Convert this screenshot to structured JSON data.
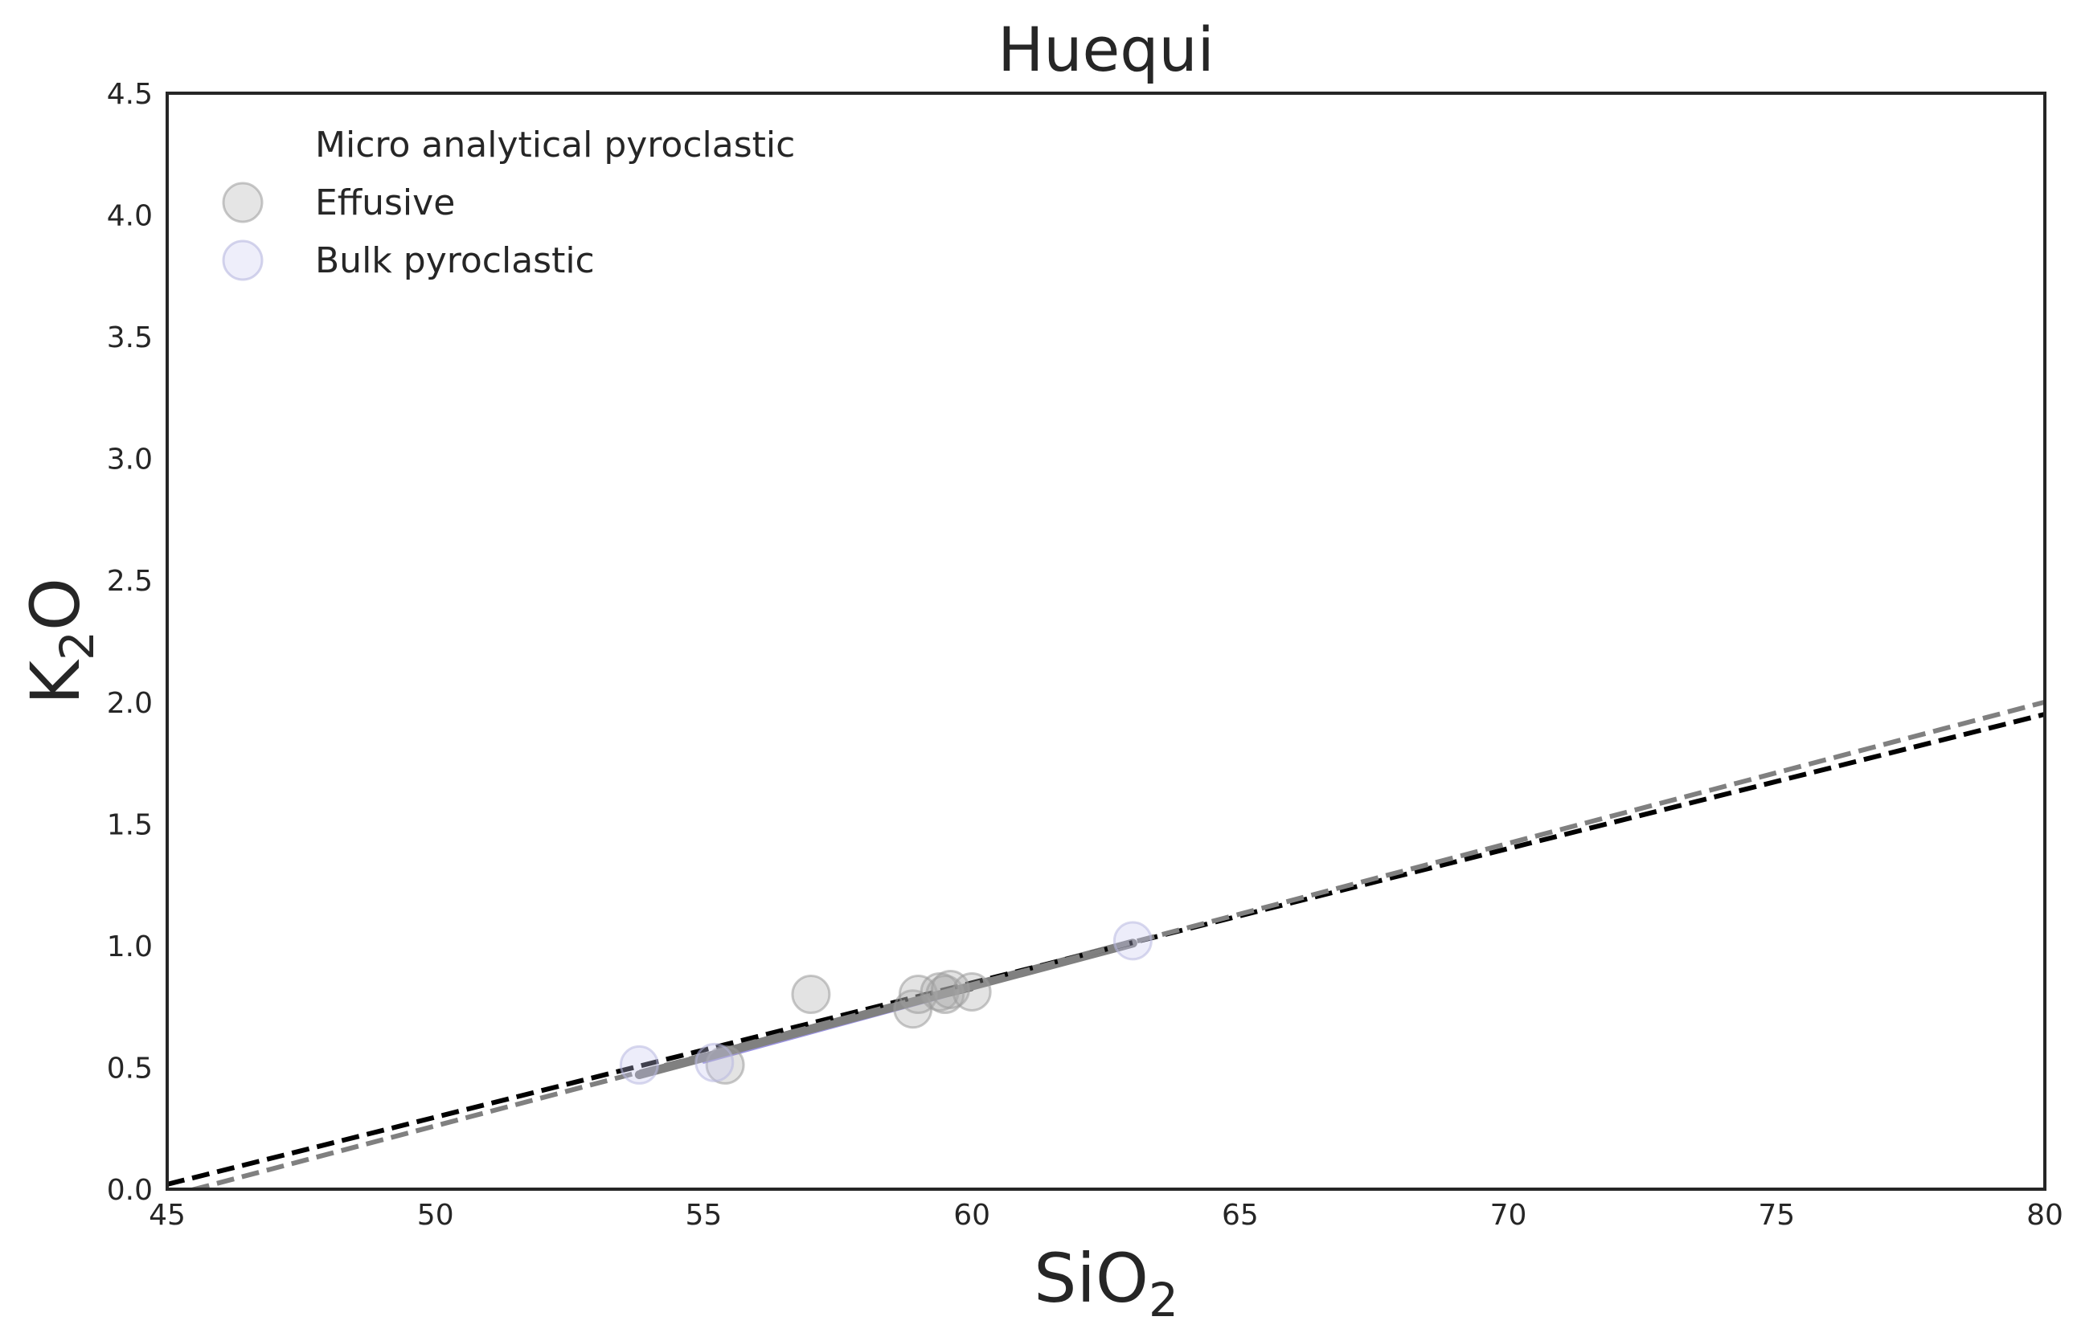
{
  "chart_data": {
    "type": "scatter",
    "title": "Huequi",
    "xlabel": {
      "base": "SiO",
      "sub": "2"
    },
    "ylabel": {
      "base": "K",
      "sub": "2",
      "suffix": "O"
    },
    "xlim": [
      45,
      80
    ],
    "ylim": [
      0,
      4.5
    ],
    "xticks": [
      45,
      50,
      55,
      60,
      65,
      70,
      75,
      80
    ],
    "xtick_labels": [
      "45",
      "50",
      "55",
      "60",
      "65",
      "70",
      "75",
      "80"
    ],
    "yticks": [
      0,
      0.5,
      1,
      1.5,
      2,
      2.5,
      3,
      3.5,
      4,
      4.5
    ],
    "ytick_labels": [
      "0.0",
      "0.5",
      "1.0",
      "1.5",
      "2.0",
      "2.5",
      "3.0",
      "3.5",
      "4.0",
      "4.5"
    ],
    "grid": false,
    "legend_position": "top-left",
    "series": [
      {
        "name": "Micro analytical pyroclastic",
        "kind": "scatter",
        "color": "#ffffff",
        "points": []
      },
      {
        "name": "Effusive",
        "kind": "scatter",
        "color": "#a9a9a9",
        "points": [
          [
            57.0,
            0.8
          ],
          [
            58.9,
            0.74
          ],
          [
            59.0,
            0.8
          ],
          [
            59.4,
            0.81
          ],
          [
            59.5,
            0.8
          ],
          [
            59.6,
            0.82
          ],
          [
            60.0,
            0.81
          ],
          [
            55.4,
            0.51
          ]
        ]
      },
      {
        "name": "Bulk pyroclastic",
        "kind": "scatter",
        "color": "#c8c8f0",
        "points": [
          [
            53.8,
            0.51
          ],
          [
            55.2,
            0.52
          ],
          [
            63.0,
            1.02
          ]
        ]
      }
    ],
    "lines": [
      {
        "style": "solid",
        "color": "#000000",
        "width": 4,
        "x": [
          53.8,
          60.0
        ],
        "y": [
          0.48,
          0.82
        ]
      },
      {
        "style": "solid",
        "color": "#9a92e0",
        "width": 3,
        "x": [
          55.0,
          59.5
        ],
        "y": [
          0.52,
          0.79
        ]
      },
      {
        "style": "solid",
        "color": "#808080",
        "width": 11,
        "x": [
          53.8,
          63.0
        ],
        "y": [
          0.47,
          1.01
        ]
      },
      {
        "style": "dashed",
        "color": "#000000",
        "width": 6,
        "x": [
          45,
          80
        ],
        "y": [
          0.02,
          1.95
        ]
      },
      {
        "style": "dashed",
        "color": "#808080",
        "width": 6,
        "x": [
          45,
          80
        ],
        "y": [
          -0.03,
          2.0
        ]
      }
    ]
  }
}
